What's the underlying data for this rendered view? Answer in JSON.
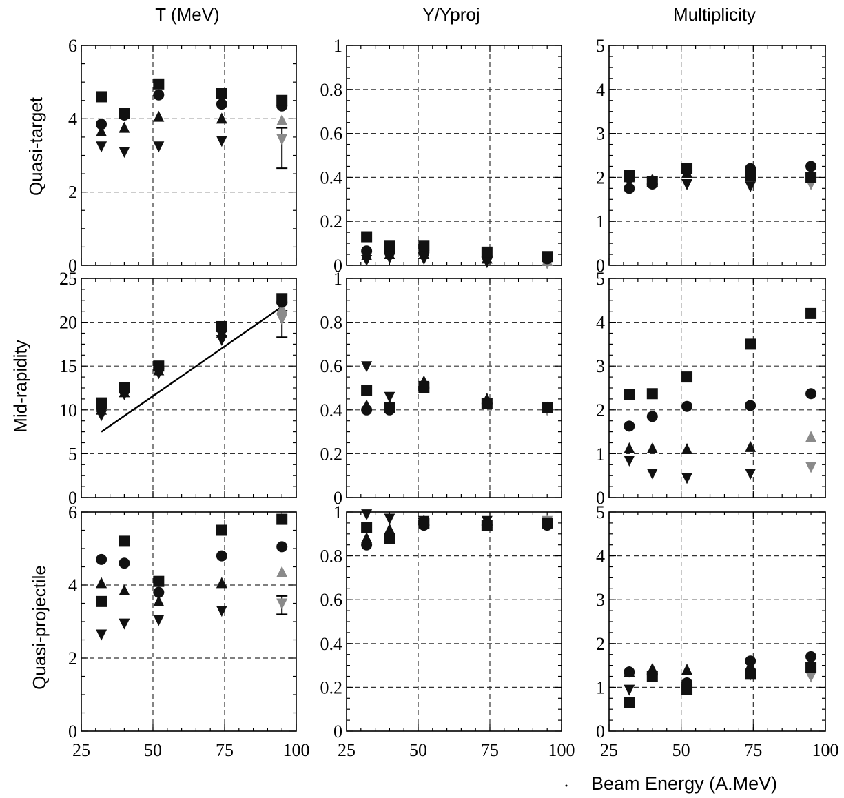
{
  "column_titles": [
    "T (MeV)",
    "Y/Yproj",
    "Multiplicity"
  ],
  "row_labels": [
    "Quasi-target",
    "Mid-rapidity",
    "Quasi-projectile"
  ],
  "x_axis_title": "Beam Energy (A.MeV)",
  "colors": {
    "dark": "#111111",
    "gray": "#8a8a8a",
    "grid": "#333333"
  },
  "chart_data": [
    {
      "type": "scatter",
      "row": "Quasi-target",
      "column": "T (MeV)",
      "xlim": [
        25,
        100
      ],
      "ylim": [
        0,
        6
      ],
      "xticks": [
        "25",
        "50",
        "75",
        "100"
      ],
      "yticks": [
        "0",
        "2",
        "4",
        "6"
      ],
      "grid": true,
      "series": [
        {
          "marker": "square",
          "x": [
            32,
            40,
            52,
            74,
            95
          ],
          "y": [
            4.6,
            4.15,
            4.95,
            4.7,
            4.5
          ]
        },
        {
          "marker": "circle",
          "x": [
            32,
            40,
            52,
            74,
            95
          ],
          "y": [
            3.85,
            4.1,
            4.65,
            4.4,
            4.35
          ]
        },
        {
          "marker": "triangle-up",
          "x": [
            32,
            40,
            52,
            74,
            95
          ],
          "y": [
            3.65,
            3.75,
            4.05,
            4.0,
            3.95
          ]
        },
        {
          "marker": "triangle-down",
          "x": [
            32,
            40,
            52,
            74,
            95
          ],
          "y": [
            3.25,
            3.1,
            3.25,
            3.4,
            3.45
          ]
        }
      ],
      "error_bar": {
        "x": 95,
        "low": 2.65,
        "high": 3.75
      }
    },
    {
      "type": "scatter",
      "row": "Quasi-target",
      "column": "Y/Yproj",
      "xlim": [
        25,
        100
      ],
      "ylim": [
        0,
        1
      ],
      "xticks": [
        "25",
        "50",
        "75",
        "100"
      ],
      "yticks": [
        "0",
        "0.2",
        "0.4",
        "0.6",
        "0.8",
        "1"
      ],
      "grid": true,
      "series": [
        {
          "marker": "square",
          "x": [
            32,
            40,
            52,
            74,
            95
          ],
          "y": [
            0.13,
            0.09,
            0.09,
            0.06,
            0.04
          ]
        },
        {
          "marker": "circle",
          "x": [
            32,
            40,
            52,
            74,
            95
          ],
          "y": [
            0.065,
            0.06,
            0.06,
            0.04,
            0.03
          ]
        },
        {
          "marker": "triangle-up",
          "x": [
            32,
            40,
            52,
            74,
            95
          ],
          "y": [
            0.045,
            0.05,
            0.05,
            0.03,
            0.02
          ]
        },
        {
          "marker": "triangle-down",
          "x": [
            32,
            40,
            52,
            74,
            95
          ],
          "y": [
            0.025,
            0.035,
            0.03,
            0.015,
            0.01
          ]
        }
      ]
    },
    {
      "type": "scatter",
      "row": "Quasi-target",
      "column": "Multiplicity",
      "xlim": [
        25,
        100
      ],
      "ylim": [
        0,
        5
      ],
      "xticks": [
        "25",
        "50",
        "75",
        "100"
      ],
      "yticks": [
        "0",
        "1",
        "2",
        "3",
        "4",
        "5"
      ],
      "grid": true,
      "series": [
        {
          "marker": "square",
          "x": [
            32,
            40,
            52,
            74,
            95
          ],
          "y": [
            2.05,
            1.9,
            2.2,
            2.05,
            2.0
          ]
        },
        {
          "marker": "circle",
          "x": [
            32,
            40,
            52,
            74,
            95
          ],
          "y": [
            1.75,
            1.85,
            2.15,
            2.2,
            2.25
          ]
        },
        {
          "marker": "triangle-up",
          "x": [
            32,
            40,
            52,
            74,
            95
          ],
          "y": [
            2.0,
            1.95,
            2.1,
            2.1,
            2.05
          ]
        },
        {
          "marker": "triangle-down",
          "x": [
            32,
            40,
            52,
            74,
            95
          ],
          "y": [
            1.9,
            1.85,
            1.85,
            1.8,
            1.85
          ]
        }
      ]
    },
    {
      "type": "scatter",
      "row": "Mid-rapidity",
      "column": "T (MeV)",
      "xlim": [
        25,
        100
      ],
      "ylim": [
        0,
        25
      ],
      "xticks": [
        "25",
        "50",
        "75",
        "100"
      ],
      "yticks": [
        "0",
        "5",
        "10",
        "15",
        "20",
        "25"
      ],
      "grid": true,
      "series": [
        {
          "marker": "square",
          "x": [
            32,
            40,
            52,
            74,
            95
          ],
          "y": [
            10.8,
            12.5,
            15.0,
            19.5,
            22.7
          ]
        },
        {
          "marker": "circle",
          "x": [
            32,
            40,
            52,
            74,
            95
          ],
          "y": [
            10.3,
            12.2,
            14.8,
            19.2,
            22.3
          ]
        },
        {
          "marker": "triangle-up",
          "x": [
            32,
            40,
            52,
            74,
            95
          ],
          "y": [
            10.0,
            12.0,
            14.5,
            18.8,
            21.5
          ]
        },
        {
          "marker": "triangle-down",
          "x": [
            32,
            40,
            52,
            74,
            95
          ],
          "y": [
            9.4,
            11.8,
            14.2,
            18.0,
            20.4
          ]
        }
      ],
      "fit_line": {
        "x": [
          32,
          96
        ],
        "y": [
          7.5,
          22.0
        ]
      },
      "error_bar": {
        "x": 95,
        "low": 18.3,
        "high": 21.3
      }
    },
    {
      "type": "scatter",
      "row": "Mid-rapidity",
      "column": "Y/Yproj",
      "xlim": [
        25,
        100
      ],
      "ylim": [
        0,
        1
      ],
      "xticks": [
        "25",
        "50",
        "75",
        "100"
      ],
      "yticks": [
        "0",
        "0.2",
        "0.4",
        "0.6",
        "0.8",
        "1"
      ],
      "grid": true,
      "series": [
        {
          "marker": "square",
          "x": [
            32,
            40,
            52,
            74,
            95
          ],
          "y": [
            0.49,
            0.41,
            0.5,
            0.43,
            0.41
          ]
        },
        {
          "marker": "circle",
          "x": [
            32,
            40,
            52,
            74,
            95
          ],
          "y": [
            0.4,
            0.4,
            0.5,
            0.43,
            0.41
          ]
        },
        {
          "marker": "triangle-up",
          "x": [
            32,
            40,
            52,
            74,
            95
          ],
          "y": [
            0.42,
            0.42,
            0.53,
            0.45,
            0.41
          ]
        },
        {
          "marker": "triangle-down",
          "x": [
            32,
            40,
            52,
            74,
            95
          ],
          "y": [
            0.6,
            0.46,
            0.51,
            0.43,
            0.4
          ]
        }
      ]
    },
    {
      "type": "scatter",
      "row": "Mid-rapidity",
      "column": "Multiplicity",
      "xlim": [
        25,
        100
      ],
      "ylim": [
        0,
        5
      ],
      "xticks": [
        "25",
        "50",
        "75",
        "100"
      ],
      "yticks": [
        "0",
        "1",
        "2",
        "3",
        "4",
        "5"
      ],
      "grid": true,
      "series": [
        {
          "marker": "square",
          "x": [
            32,
            40,
            52,
            74,
            95
          ],
          "y": [
            2.35,
            2.37,
            2.75,
            3.5,
            4.2
          ]
        },
        {
          "marker": "circle",
          "x": [
            32,
            40,
            52,
            74,
            95
          ],
          "y": [
            1.63,
            1.85,
            2.08,
            2.1,
            2.37
          ]
        },
        {
          "marker": "triangle-up",
          "x": [
            32,
            40,
            52,
            74,
            95
          ],
          "y": [
            1.12,
            1.12,
            1.1,
            1.15,
            1.38
          ]
        },
        {
          "marker": "triangle-down",
          "x": [
            32,
            40,
            52,
            74,
            95
          ],
          "y": [
            0.85,
            0.55,
            0.45,
            0.55,
            0.7
          ]
        }
      ]
    },
    {
      "type": "scatter",
      "row": "Quasi-projectile",
      "column": "T (MeV)",
      "xlim": [
        25,
        100
      ],
      "ylim": [
        0,
        6
      ],
      "xticks": [
        "25",
        "50",
        "75",
        "100"
      ],
      "yticks": [
        "0",
        "2",
        "4",
        "6"
      ],
      "grid": true,
      "series": [
        {
          "marker": "square",
          "x": [
            32,
            40,
            52,
            74,
            95
          ],
          "y": [
            3.55,
            5.2,
            4.1,
            5.5,
            5.8
          ]
        },
        {
          "marker": "circle",
          "x": [
            32,
            40,
            52,
            74,
            95
          ],
          "y": [
            4.7,
            4.6,
            3.8,
            4.8,
            5.05
          ]
        },
        {
          "marker": "triangle-up",
          "x": [
            32,
            40,
            52,
            74,
            95
          ],
          "y": [
            4.05,
            3.85,
            3.55,
            4.05,
            4.35
          ]
        },
        {
          "marker": "triangle-down",
          "x": [
            32,
            40,
            52,
            74,
            95
          ],
          "y": [
            2.65,
            2.95,
            3.05,
            3.3,
            3.5
          ]
        }
      ],
      "error_bar": {
        "x": 95,
        "low": 3.2,
        "high": 3.7
      }
    },
    {
      "type": "scatter",
      "row": "Quasi-projectile",
      "column": "Y/Yproj",
      "xlim": [
        25,
        100
      ],
      "ylim": [
        0,
        1
      ],
      "xticks": [
        "25",
        "50",
        "75",
        "100"
      ],
      "yticks": [
        "0",
        "0.2",
        "0.4",
        "0.6",
        "0.8",
        "1"
      ],
      "grid": true,
      "series": [
        {
          "marker": "square",
          "x": [
            32,
            40,
            52,
            74,
            95
          ],
          "y": [
            0.93,
            0.88,
            0.95,
            0.94,
            0.95
          ]
        },
        {
          "marker": "circle",
          "x": [
            32,
            40,
            52,
            74,
            95
          ],
          "y": [
            0.85,
            0.88,
            0.94,
            0.94,
            0.94
          ]
        },
        {
          "marker": "triangle-up",
          "x": [
            32,
            40,
            52,
            74,
            95
          ],
          "y": [
            0.88,
            0.92,
            0.96,
            0.95,
            0.96
          ]
        },
        {
          "marker": "triangle-down",
          "x": [
            32,
            40,
            52,
            74,
            95
          ],
          "y": [
            0.99,
            0.97,
            0.96,
            0.96,
            0.96
          ]
        }
      ]
    },
    {
      "type": "scatter",
      "row": "Quasi-projectile",
      "column": "Multiplicity",
      "xlim": [
        25,
        100
      ],
      "ylim": [
        0,
        5
      ],
      "xticks": [
        "25",
        "50",
        "75",
        "100"
      ],
      "yticks": [
        "0",
        "1",
        "2",
        "3",
        "4",
        "5"
      ],
      "grid": true,
      "series": [
        {
          "marker": "square",
          "x": [
            32,
            40,
            52,
            74,
            95
          ],
          "y": [
            0.65,
            1.25,
            0.95,
            1.3,
            1.45
          ]
        },
        {
          "marker": "circle",
          "x": [
            32,
            40,
            52,
            74,
            95
          ],
          "y": [
            1.35,
            1.3,
            1.1,
            1.6,
            1.7
          ]
        },
        {
          "marker": "triangle-up",
          "x": [
            32,
            40,
            52,
            74,
            95
          ],
          "y": [
            1.35,
            1.42,
            1.4,
            1.5,
            1.55
          ]
        },
        {
          "marker": "triangle-down",
          "x": [
            32,
            40,
            52,
            74,
            95
          ],
          "y": [
            0.95,
            1.25,
            1.05,
            1.3,
            1.25
          ]
        }
      ]
    }
  ]
}
